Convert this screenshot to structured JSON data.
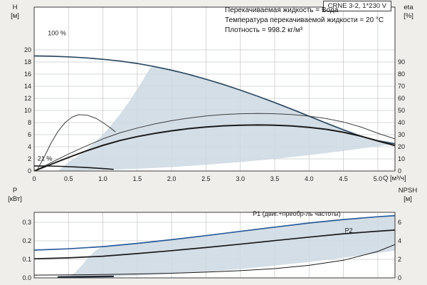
{
  "page": {
    "title_box": "CRNE 3-2, 1*230 V",
    "info_lines": [
      "Перекачиваемая жидкость = Вода",
      "Температура перекачиваемой жидкости = 20 °C",
      "Плотность = 998.2 кг/м³"
    ]
  },
  "colors": {
    "page_bg": "#efeeeb",
    "plot_bg": "#ffffff",
    "grid": "#c9ccce",
    "frame": "#3c3c3c",
    "envelope": "#ccd8e2",
    "curve_blue": "#2c4a63",
    "curve_black": "#1a1a1a",
    "curve_gray": "#3f3f3f",
    "p1_blue": "#2b5c9b",
    "label_blue": "#2356a6"
  },
  "chart_data": [
    {
      "type": "line",
      "id": "qh",
      "title": "",
      "xlabel": "Q [м³/ч]",
      "ylabel_left": "H [м]",
      "ylabel_left_lines": [
        "H",
        "[м]"
      ],
      "ylabel_right": "eta [%]",
      "ylabel_right_lines": [
        "eta",
        "[%]"
      ],
      "xlim": [
        0,
        5.25
      ],
      "ylim_left": [
        0,
        20
      ],
      "ylim_right": [
        0,
        100
      ],
      "grid": true,
      "x_ticks": [
        {
          "v": 0,
          "t": "0"
        },
        {
          "v": 0.5,
          "t": "0.5"
        },
        {
          "v": 1,
          "t": "1.0"
        },
        {
          "v": 1.5,
          "t": "1.5"
        },
        {
          "v": 2,
          "t": "2.0"
        },
        {
          "v": 2.5,
          "t": "2.5"
        },
        {
          "v": 3,
          "t": "3.0"
        },
        {
          "v": 3.5,
          "t": "3.5"
        },
        {
          "v": 4,
          "t": "4.0"
        },
        {
          "v": 4.5,
          "t": "4.5"
        },
        {
          "v": 5,
          "t": "5.0"
        }
      ],
      "left_ticks": [
        {
          "v": 0,
          "t": "0"
        },
        {
          "v": 2,
          "t": "2"
        },
        {
          "v": 4,
          "t": "4"
        },
        {
          "v": 6,
          "t": "6"
        },
        {
          "v": 8,
          "t": "8"
        },
        {
          "v": 10,
          "t": "10"
        },
        {
          "v": 12,
          "t": "12"
        },
        {
          "v": 14,
          "t": "14"
        },
        {
          "v": 16,
          "t": "16"
        },
        {
          "v": 18,
          "t": "18"
        },
        {
          "v": 20,
          "t": "20"
        }
      ],
      "right_ticks": [
        {
          "v": 0,
          "t": "0"
        },
        {
          "v": 10,
          "t": "10"
        },
        {
          "v": 20,
          "t": "20"
        },
        {
          "v": 30,
          "t": "30"
        },
        {
          "v": 40,
          "t": "40"
        },
        {
          "v": 50,
          "t": "50"
        },
        {
          "v": 60,
          "t": "60"
        },
        {
          "v": 70,
          "t": "70"
        },
        {
          "v": 80,
          "t": "80"
        },
        {
          "v": 90,
          "t": "90"
        }
      ],
      "regions": [
        {
          "name": "speed-control-envelope",
          "axis": "left",
          "x": [
            0.35,
            0.5,
            0.65,
            0.8,
            0.95,
            1.1,
            1.25,
            1.4,
            1.55,
            1.68,
            1.72,
            1.75,
            2.0,
            2.25,
            2.5,
            2.75,
            3.0,
            3.25,
            3.5,
            3.75,
            4.0,
            4.25,
            4.5,
            4.75,
            5.0,
            5.25,
            5.0,
            4.5,
            4.0,
            3.5,
            3.0,
            2.5,
            2.0,
            1.5,
            1.0,
            0.6,
            0.35
          ],
          "y": [
            0.02,
            1.5,
            2.54,
            3.84,
            5.42,
            7.26,
            9.38,
            11.76,
            14.4,
            16.9,
            17.2,
            17.25,
            16.65,
            15.95,
            15.15,
            14.3,
            13.35,
            12.35,
            11.3,
            10.2,
            9.05,
            7.9,
            6.8,
            5.75,
            5.0,
            4.5,
            4.08,
            3.31,
            2.61,
            2.0,
            1.47,
            1.02,
            0.65,
            0.37,
            0.163,
            0.059,
            0.02
          ]
        }
      ],
      "series": [
        {
          "name": "head-curve-100pct",
          "axis": "left",
          "color": "#2c4a63",
          "width": 1.7,
          "x": [
            0,
            0.25,
            0.5,
            0.75,
            1.0,
            1.25,
            1.5,
            1.75,
            2.0,
            2.25,
            2.5,
            2.75,
            3.0,
            3.25,
            3.5,
            3.75,
            4.0,
            4.25,
            4.5,
            4.75,
            5.0,
            5.25
          ],
          "y": [
            19.0,
            18.95,
            18.85,
            18.68,
            18.45,
            18.15,
            17.75,
            17.25,
            16.65,
            15.95,
            15.15,
            14.3,
            13.35,
            12.35,
            11.3,
            10.2,
            9.05,
            7.9,
            6.8,
            5.75,
            5.0,
            4.5
          ]
        },
        {
          "name": "eta-pump-curve",
          "axis": "right",
          "color": "#3f3f3f",
          "width": 1,
          "x": [
            0,
            0.25,
            0.5,
            0.75,
            1.0,
            1.25,
            1.5,
            1.75,
            2.0,
            2.25,
            2.5,
            2.75,
            3.0,
            3.25,
            3.5,
            3.75,
            4.0,
            4.25,
            4.5,
            4.75,
            5.0,
            5.25
          ],
          "y": [
            0,
            7,
            14,
            20.5,
            26.5,
            31.5,
            35.5,
            38.8,
            41.5,
            43.7,
            45.4,
            46.6,
            47.3,
            47.5,
            47.3,
            46.6,
            45.3,
            43.3,
            40.4,
            36.4,
            31.2,
            26.5
          ]
        },
        {
          "name": "eta-total-curve",
          "axis": "right",
          "color": "#1a1a1a",
          "width": 2,
          "x": [
            0,
            0.25,
            0.5,
            0.75,
            1.0,
            1.25,
            1.5,
            1.75,
            2.0,
            2.25,
            2.5,
            2.75,
            3.0,
            3.25,
            3.5,
            3.75,
            4.0,
            4.25,
            4.5,
            4.75,
            5.0,
            5.25
          ],
          "y": [
            0,
            5.6,
            11.2,
            16.4,
            21.2,
            25.2,
            28.4,
            31,
            33.2,
            35,
            36.3,
            37.3,
            37.8,
            38,
            37.8,
            37.2,
            36,
            34.4,
            32,
            28.8,
            24.8,
            21
          ]
        },
        {
          "name": "eta-reduced-speed-curve",
          "axis": "right",
          "color": "#3f3f3f",
          "width": 1,
          "x": [
            0.05,
            0.15,
            0.25,
            0.35,
            0.45,
            0.55,
            0.65,
            0.78,
            0.9,
            1.0,
            1.1,
            1.18
          ],
          "y": [
            1.5,
            12,
            23.5,
            33,
            40,
            44.5,
            46.5,
            46,
            43.5,
            40,
            36,
            32.5
          ]
        },
        {
          "name": "head-curve-21pct",
          "axis": "left",
          "color": "#1a1a1a",
          "width": 1.6,
          "x": [
            0,
            0.2,
            0.4,
            0.6,
            0.8,
            1.0,
            1.15
          ],
          "y": [
            0.84,
            0.82,
            0.76,
            0.67,
            0.55,
            0.4,
            0.27
          ]
        }
      ],
      "annotations": [
        {
          "text": "100 %",
          "x": 0.2,
          "y": 22.4,
          "axis": "left",
          "color": "#1c1c1c"
        },
        {
          "text": "21 %",
          "x": 0.05,
          "y": 1.7,
          "axis": "left",
          "color": "#1c1c1c"
        }
      ]
    },
    {
      "type": "line",
      "id": "power-npsh",
      "title": "",
      "xlabel": "",
      "ylabel_left": "P [кВт]",
      "ylabel_left_lines": [
        "P",
        "[кВт]"
      ],
      "ylabel_right": "NPSH [м]",
      "ylabel_right_lines": [
        "NPSH",
        "[м]"
      ],
      "xlim": [
        0,
        5.25
      ],
      "ylim_left": [
        0,
        0.354
      ],
      "ylim_right": [
        0,
        7.08
      ],
      "grid": true,
      "x_ticks": [
        {
          "v": 0,
          "t": "0"
        },
        {
          "v": 0.5,
          "t": "0.5"
        },
        {
          "v": 1,
          "t": "1.0"
        },
        {
          "v": 1.5,
          "t": "1.5"
        },
        {
          "v": 2,
          "t": "2.0"
        },
        {
          "v": 2.5,
          "t": "2.5"
        },
        {
          "v": 3,
          "t": "3.0"
        },
        {
          "v": 3.5,
          "t": "3.5"
        },
        {
          "v": 4,
          "t": "4.0"
        },
        {
          "v": 4.5,
          "t": "4.5"
        },
        {
          "v": 5,
          "t": "5.0"
        }
      ],
      "left_ticks": [
        {
          "v": 0,
          "t": "0.0"
        },
        {
          "v": 0.1,
          "t": "0.1"
        },
        {
          "v": 0.2,
          "t": "0.2"
        },
        {
          "v": 0.3,
          "t": "0.3"
        }
      ],
      "right_ticks": [
        {
          "v": 0,
          "t": "0"
        },
        {
          "v": 2,
          "t": "2"
        },
        {
          "v": 4,
          "t": "4"
        },
        {
          "v": 6,
          "t": "6"
        }
      ],
      "regions": [
        {
          "name": "power-envelope",
          "axis": "left",
          "x": [
            0.5,
            0.6,
            0.7,
            0.8,
            0.9,
            1.0,
            1.5,
            2.0,
            2.5,
            3.0,
            3.5,
            4.0,
            4.5,
            5.0,
            5.25,
            5.25,
            5.0,
            4.5,
            4.0,
            3.5,
            3.0,
            2.5,
            2.0,
            1.5,
            1.0,
            0.7,
            0.5
          ],
          "y": [
            0.003,
            0.03,
            0.07,
            0.115,
            0.15,
            0.169,
            0.186,
            0.206,
            0.228,
            0.251,
            0.274,
            0.296,
            0.315,
            0.33,
            0.336,
            0.148,
            0.134,
            0.109,
            0.086,
            0.066,
            0.048,
            0.033,
            0.0215,
            0.012,
            0.0054,
            0.0026,
            0.0013
          ]
        }
      ],
      "series": [
        {
          "name": "p1-power-curve",
          "axis": "left",
          "color": "#2b5c9b",
          "width": 1.7,
          "x": [
            0,
            0.5,
            1.0,
            1.5,
            2.0,
            2.5,
            3.0,
            3.5,
            4.0,
            4.5,
            5.0,
            5.25
          ],
          "y": [
            0.15,
            0.157,
            0.169,
            0.186,
            0.206,
            0.228,
            0.251,
            0.274,
            0.296,
            0.315,
            0.33,
            0.336
          ]
        },
        {
          "name": "p2-power-curve",
          "axis": "left",
          "color": "#1a1a1a",
          "width": 1.7,
          "x": [
            0,
            0.5,
            1.0,
            1.5,
            2.0,
            2.5,
            3.0,
            3.5,
            4.0,
            4.5,
            5.0,
            5.25
          ],
          "y": [
            0.103,
            0.108,
            0.117,
            0.131,
            0.147,
            0.164,
            0.182,
            0.201,
            0.22,
            0.238,
            0.252,
            0.258
          ]
        },
        {
          "name": "npsh-curve",
          "axis": "right",
          "color": "#1a1a1a",
          "width": 1,
          "x": [
            0,
            0.5,
            1.0,
            1.5,
            2.0,
            2.5,
            3.0,
            3.5,
            4.0,
            4.5,
            5.0,
            5.25
          ],
          "y": [
            0.3,
            0.32,
            0.36,
            0.42,
            0.5,
            0.62,
            0.78,
            1.0,
            1.35,
            1.9,
            2.85,
            3.6
          ]
        },
        {
          "name": "power-curve-21pct",
          "axis": "left",
          "color": "#1d2733",
          "width": 2.2,
          "x": [
            0.35,
            0.7,
            1.15
          ],
          "y": [
            0.005,
            0.006,
            0.008
          ]
        }
      ],
      "annotations": [
        {
          "text": "P1 (двиг.+преобр-ль частоты)",
          "x": 3.18,
          "y": 0.335,
          "axis": "left",
          "color": "#2356a6"
        },
        {
          "text": "P2",
          "x": 4.52,
          "y": 0.245,
          "axis": "left",
          "color": "#2356a6"
        }
      ]
    }
  ]
}
